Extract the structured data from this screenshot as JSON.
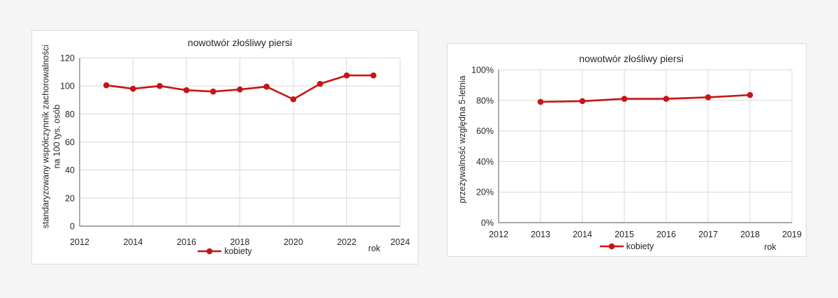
{
  "page": {
    "background": "#f5f5f5"
  },
  "colors": {
    "series": "#c81414",
    "grid": "#d9d9d9",
    "axis": "#8c8c8c",
    "text": "#262626",
    "panel_border": "#dcdcdc"
  },
  "chart_data": [
    {
      "type": "line",
      "title": "nowotwór złośliwy piersi",
      "ylabel": "standaryzowany współczynnik zachorowalności na 100 tys. osób",
      "ylabel_lines": [
        "standaryzowany współczynnik zachorowalności",
        "na 100 tys. osób"
      ],
      "xlabel": "rok",
      "x": [
        2013,
        2014,
        2015,
        2016,
        2017,
        2018,
        2019,
        2020,
        2021,
        2022,
        2023
      ],
      "series": [
        {
          "name": "kobiety",
          "values": [
            100.5,
            98,
            100,
            97,
            96,
            97.5,
            99.5,
            90.5,
            101.5,
            107.5,
            107.5
          ]
        }
      ],
      "xlim": [
        2012,
        2024
      ],
      "ylim": [
        0,
        120
      ],
      "x_ticks": [
        2012,
        2014,
        2016,
        2018,
        2020,
        2022,
        2024
      ],
      "x_tick_labels": [
        "2012",
        "2014",
        "2016",
        "2018",
        "2020",
        "2022",
        "2024"
      ],
      "y_ticks": [
        0,
        20,
        40,
        60,
        80,
        100,
        120
      ],
      "y_tick_labels": [
        "0",
        "20",
        "40",
        "60",
        "80",
        "100",
        "120"
      ],
      "grid": true,
      "legend": {
        "label": "kobiety",
        "position": "bottom"
      }
    },
    {
      "type": "line",
      "title": "nowotwór złośliwy piersi",
      "ylabel": "przeżywalność względna 5-letnia",
      "xlabel": "rok",
      "x": [
        2013,
        2014,
        2015,
        2016,
        2017,
        2018
      ],
      "series": [
        {
          "name": "kobiety",
          "values": [
            79,
            79.5,
            81,
            81,
            82,
            83.5
          ]
        }
      ],
      "value_format": "percent",
      "xlim": [
        2012,
        2019
      ],
      "ylim": [
        0,
        100
      ],
      "x_ticks": [
        2012,
        2013,
        2014,
        2015,
        2016,
        2017,
        2018,
        2019
      ],
      "x_tick_labels": [
        "2012",
        "2013",
        "2014",
        "2015",
        "2016",
        "2017",
        "2018",
        "2019"
      ],
      "y_ticks": [
        0,
        20,
        40,
        60,
        80,
        100
      ],
      "y_tick_labels": [
        "0%",
        "20%",
        "40%",
        "60%",
        "80%",
        "100%"
      ],
      "grid": true,
      "legend": {
        "label": "kobiety",
        "position": "bottom"
      }
    }
  ]
}
